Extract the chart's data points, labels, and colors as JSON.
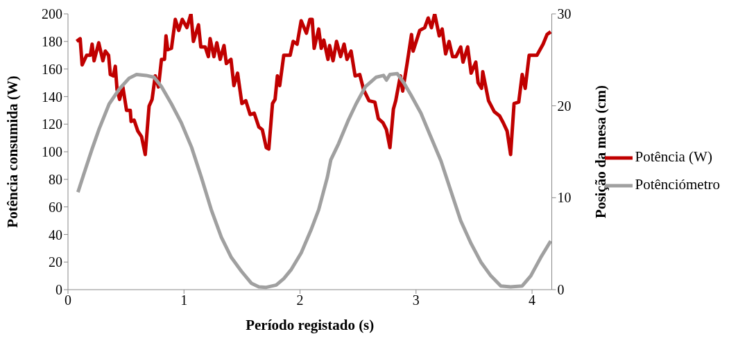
{
  "chart_data": {
    "type": "line",
    "xlabel": "Período registado (s)",
    "ylabel": "Potência consumida (W)",
    "y2label": "Posição da mesa (cm)",
    "xlim": [
      0,
      4.17
    ],
    "xticks": [
      0,
      1,
      2,
      3,
      4
    ],
    "ylim": [
      0,
      200
    ],
    "yticks": [
      0,
      20,
      40,
      60,
      80,
      100,
      120,
      140,
      160,
      180,
      200
    ],
    "y2lim": [
      0,
      30
    ],
    "y2ticks": [
      0,
      10,
      20,
      30
    ],
    "legend": "right",
    "series": [
      {
        "name": "Potência (W)",
        "color": "#c00000",
        "x": [
          0.075,
          0.105,
          0.122,
          0.161,
          0.193,
          0.208,
          0.225,
          0.265,
          0.301,
          0.322,
          0.35,
          0.365,
          0.391,
          0.408,
          0.423,
          0.445,
          0.473,
          0.505,
          0.537,
          0.544,
          0.57,
          0.602,
          0.634,
          0.666,
          0.699,
          0.725,
          0.752,
          0.78,
          0.806,
          0.832,
          0.845,
          0.86,
          0.892,
          0.925,
          0.955,
          0.985,
          1.025,
          1.06,
          1.081,
          1.125,
          1.145,
          1.183,
          1.21,
          1.225,
          1.258,
          1.283,
          1.312,
          1.345,
          1.365,
          1.405,
          1.43,
          1.462,
          1.499,
          1.533,
          1.57,
          1.605,
          1.645,
          1.675,
          1.709,
          1.731,
          1.763,
          1.785,
          1.805,
          1.825,
          1.86,
          1.915,
          1.941,
          1.975,
          2.01,
          2.055,
          2.085,
          2.105,
          2.122,
          2.161,
          2.183,
          2.205,
          2.241,
          2.255,
          2.285,
          2.315,
          2.35,
          2.38,
          2.405,
          2.44,
          2.475,
          2.515,
          2.548,
          2.595,
          2.645,
          2.675,
          2.715,
          2.745,
          2.775,
          2.805,
          2.825,
          2.865,
          2.885,
          2.925,
          2.961,
          2.975,
          3.032,
          3.075,
          3.105,
          3.133,
          3.161,
          3.2,
          3.225,
          3.255,
          3.285,
          3.315,
          3.345,
          3.385,
          3.405,
          3.445,
          3.475,
          3.515,
          3.535,
          3.565,
          3.575,
          3.625,
          3.675,
          3.72,
          3.752,
          3.785,
          3.815,
          3.845,
          3.885,
          3.915,
          3.941,
          3.975,
          4.042,
          4.095,
          4.129,
          4.161
        ],
        "values": [
          180,
          182,
          163,
          170,
          170,
          178,
          166,
          179,
          166,
          173,
          170,
          156,
          155,
          162,
          145,
          138,
          147,
          130,
          130,
          122,
          123,
          115,
          111,
          98,
          133,
          138,
          155,
          147,
          167,
          167,
          184,
          174,
          175,
          196,
          188,
          196,
          190,
          200,
          180,
          192,
          176,
          176,
          169,
          182,
          169,
          179,
          167,
          177,
          164,
          167,
          148,
          157,
          135,
          137,
          127,
          128,
          118,
          116,
          103,
          102,
          135,
          138,
          155,
          148,
          170,
          170,
          180,
          178,
          195,
          186,
          196,
          196,
          175,
          189,
          175,
          181,
          167,
          177,
          166,
          180,
          169,
          178,
          167,
          173,
          155,
          156,
          145,
          137,
          136,
          124,
          121,
          116,
          103,
          131,
          137,
          155,
          144,
          165,
          185,
          173,
          188,
          190,
          197,
          190,
          200,
          184,
          189,
          171,
          180,
          169,
          169,
          176,
          165,
          176,
          157,
          165,
          150,
          146,
          158,
          137,
          129,
          126,
          121,
          115,
          98,
          135,
          136,
          156,
          146,
          170,
          170,
          178,
          185,
          187
        ]
      },
      {
        "name": "Potênciómetro",
        "color": "#a0a0a0",
        "axis": "y2",
        "x": [
          0.086,
          0.14,
          0.205,
          0.269,
          0.355,
          0.441,
          0.527,
          0.591,
          0.675,
          0.742,
          0.805,
          0.892,
          0.975,
          1.065,
          1.15,
          1.235,
          1.322,
          1.408,
          1.495,
          1.58,
          1.645,
          1.709,
          1.795,
          1.86,
          1.925,
          2.01,
          2.095,
          2.161,
          2.235,
          2.265,
          2.333,
          2.419,
          2.483,
          2.565,
          2.655,
          2.72,
          2.745,
          2.775,
          2.838,
          2.895,
          2.955,
          3.042,
          3.125,
          3.215,
          3.301,
          3.385,
          3.475,
          3.559,
          3.645,
          3.731,
          3.815,
          3.915,
          3.989,
          4.075,
          4.161
        ],
        "values": [
          10.6,
          12.7,
          15.2,
          17.5,
          20.2,
          21.8,
          23.0,
          23.4,
          23.3,
          23.1,
          22.1,
          20.2,
          18.2,
          15.5,
          12.2,
          8.7,
          5.7,
          3.5,
          2.0,
          0.7,
          0.3,
          0.25,
          0.5,
          1.2,
          2.2,
          4.0,
          6.5,
          8.7,
          12.2,
          14.1,
          15.9,
          18.5,
          20.2,
          22.1,
          23.1,
          23.3,
          22.8,
          23.4,
          23.5,
          22.5,
          21.2,
          19.2,
          16.7,
          14.0,
          10.7,
          7.5,
          5.0,
          3.0,
          1.5,
          0.4,
          0.3,
          0.4,
          1.5,
          3.5,
          5.3
        ]
      }
    ]
  }
}
